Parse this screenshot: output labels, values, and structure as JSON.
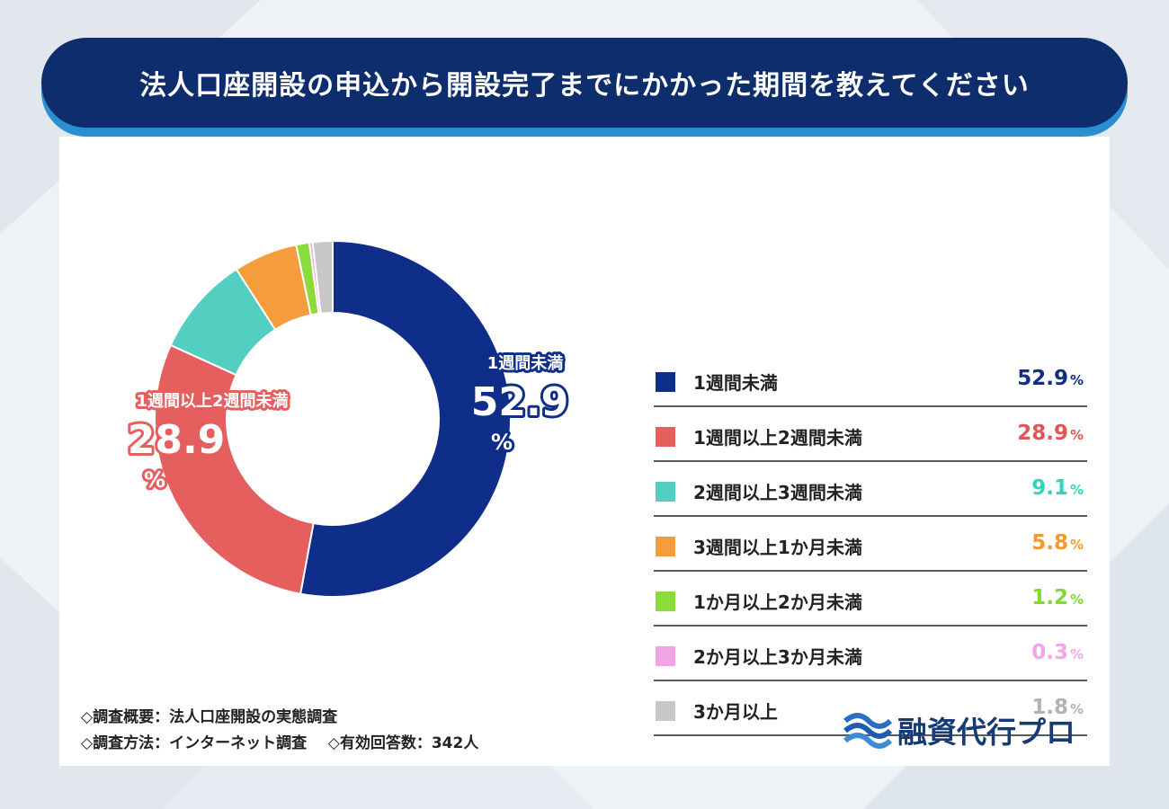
{
  "title": "法人口座開設の申込から開設完了までにかかった期間を教えてください",
  "chart_data": {
    "type": "pie",
    "categories": [
      "1週間未満",
      "1週間以上2週間未満",
      "2週間以上3週間未満",
      "3週間以上1か月未満",
      "1か月以上2か月未満",
      "2か月以上3か月未満",
      "3か月以上"
    ],
    "values": [
      52.9,
      28.9,
      9.1,
      5.8,
      1.2,
      0.3,
      1.8
    ],
    "value_labels": [
      "52.9",
      "28.9",
      "9.1",
      "5.8",
      "1.2",
      "0.3",
      "1.8"
    ],
    "unit": "%",
    "colors": [
      "#0f2e8a",
      "#e65f5f",
      "#52cfc0",
      "#f59d3d",
      "#8bdc3b",
      "#f0a5e6",
      "#c7c7c7"
    ],
    "legend_value_colors": [
      "#0f2e8a",
      "#e05555",
      "#2fd6bb",
      "#f3992f",
      "#82d930",
      "#f0a5e6",
      "#b3b3b3"
    ],
    "donut": true,
    "start_angle_deg": 0,
    "direction": "clockwise",
    "legend_placement": "right"
  },
  "notes": {
    "line1": "◇調査概要：法人口座開設の実態調査",
    "line2_a": "◇調査方法：インターネット調査",
    "line2_b": "◇有効回答数：342人"
  },
  "logo": {
    "name": "融資代行プロ",
    "icon": "wave-logo-icon"
  }
}
